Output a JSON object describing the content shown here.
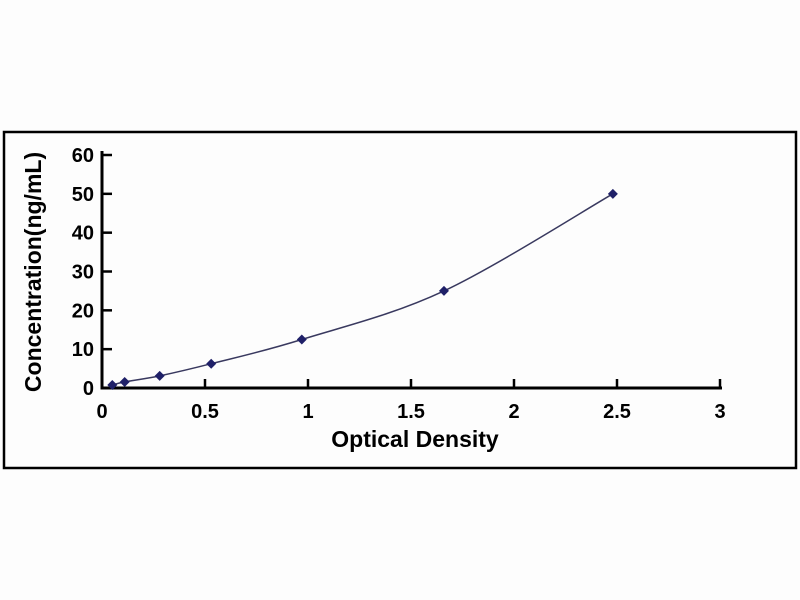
{
  "chart_data": {
    "type": "scatter",
    "subtype": "smooth-line-with-diamond-markers",
    "title": "",
    "xlabel": "Optical Density",
    "ylabel": "Concentration(ng/mL)",
    "x": [
      0.05,
      0.11,
      0.28,
      0.53,
      0.97,
      1.66,
      2.48
    ],
    "y": [
      0.78,
      1.56,
      3.12,
      6.25,
      12.5,
      25,
      50
    ],
    "xlim": [
      0,
      3
    ],
    "ylim": [
      0,
      60
    ],
    "x_tick_values": [
      0,
      0.5,
      1,
      1.5,
      2,
      2.5,
      3
    ],
    "x_tick_labels": [
      "0",
      "0.5",
      "1",
      "1.5",
      "2",
      "2.5",
      "3"
    ],
    "y_tick_values": [
      0,
      10,
      20,
      30,
      40,
      50,
      60
    ],
    "y_tick_labels": [
      "0",
      "10",
      "20",
      "30",
      "40",
      "50",
      "60"
    ],
    "grid": false,
    "legend": "none",
    "marker": "diamond",
    "colors": {
      "marker": "#1F2068",
      "line": "#39395F",
      "axis": "#000000",
      "frame": "#000000",
      "text": "#000000",
      "background": "#FDFDFD"
    }
  }
}
